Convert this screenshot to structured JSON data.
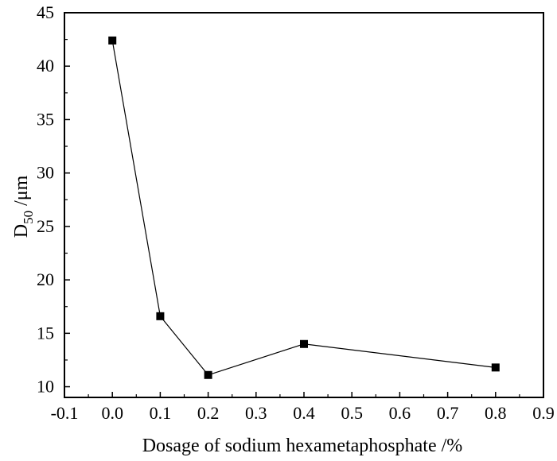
{
  "chart_data": {
    "type": "line",
    "title": "",
    "xlabel": "Dosage of sodium hexametaphosphate /%",
    "ylabel": {
      "base": "D",
      "subscript": "50",
      "suffix": " /μm"
    },
    "x": [
      0.0,
      0.1,
      0.2,
      0.4,
      0.8
    ],
    "series": [
      {
        "values": [
          42.4,
          16.6,
          11.1,
          14.0,
          11.8
        ]
      }
    ],
    "xlim": [
      -0.1,
      0.9
    ],
    "ylim": [
      9,
      45
    ],
    "xticks": [
      -0.1,
      0.0,
      0.1,
      0.2,
      0.3,
      0.4,
      0.5,
      0.6,
      0.7,
      0.8,
      0.9
    ],
    "xtick_labels": [
      "-0.1",
      "0.0",
      "0.1",
      "0.2",
      "0.3",
      "0.4",
      "0.5",
      "0.6",
      "0.7",
      "0.8",
      "0.9"
    ],
    "yticks": [
      10,
      15,
      20,
      25,
      30,
      35,
      40,
      45
    ],
    "ytick_labels": [
      "10",
      "15",
      "20",
      "25",
      "30",
      "35",
      "40",
      "45"
    ],
    "grid": false,
    "legend": "none",
    "colors": {
      "line": "#000000",
      "marker": "#000000",
      "axis": "#000000"
    }
  }
}
